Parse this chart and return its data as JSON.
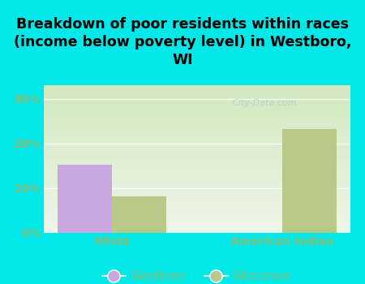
{
  "title": "Breakdown of poor residents within races\n(income below poverty level) in Westboro,\nWI",
  "categories": [
    "White",
    "American Indian"
  ],
  "westboro_values": [
    15.3,
    0.0
  ],
  "wisconsin_values": [
    8.2,
    23.2
  ],
  "westboro_color": "#c9a8e0",
  "wisconsin_color": "#b8c98a",
  "background_color": "#00e8e8",
  "plot_bg_top": "#d0e8c0",
  "plot_bg_bottom": "#eef5e8",
  "yticks": [
    0,
    10,
    20,
    30
  ],
  "ylim": [
    0,
    33
  ],
  "bar_width": 0.32,
  "title_fontsize": 12.5,
  "tick_color": "#80c080",
  "watermark": "City-Data.com",
  "watermark_color": "#b0cece"
}
